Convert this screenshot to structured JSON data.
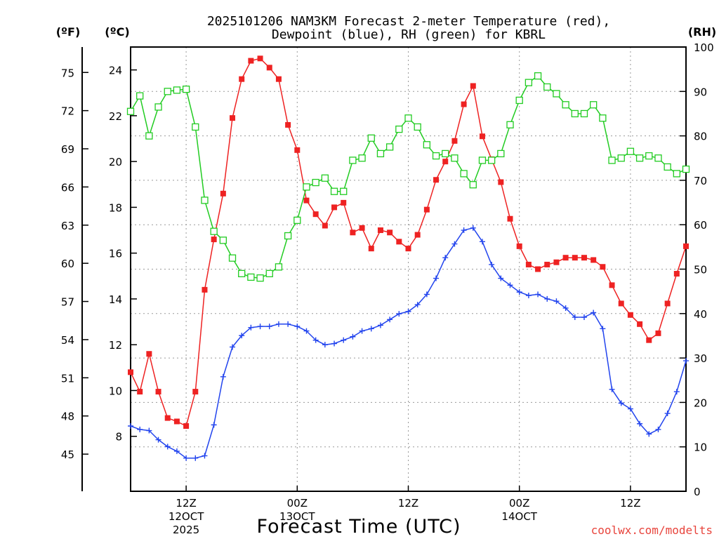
{
  "chart_data": {
    "type": "line",
    "title_line1": "2025101206 NAM3KM Forecast 2-meter Temperature (red),",
    "title_line2": "Dewpoint (blue), RH (green) for KBRL",
    "xlabel": "Forecast Time (UTC)",
    "credit": "coolwx.com/modelts",
    "left_outer_axis": {
      "unit_label": "(ºF)",
      "ticks": [
        45,
        48,
        51,
        54,
        57,
        60,
        63,
        66,
        69,
        72,
        75
      ]
    },
    "left_axis": {
      "unit_label": "(ºC)",
      "ylim": [
        5.6,
        25.0
      ],
      "ticks": [
        8,
        10,
        12,
        14,
        16,
        18,
        20,
        22,
        24
      ]
    },
    "right_axis": {
      "unit_label": "(RH)",
      "ylim": [
        0,
        100
      ],
      "ticks": [
        0,
        10,
        20,
        30,
        40,
        50,
        60,
        70,
        80,
        90,
        100
      ]
    },
    "x_axis": {
      "unit": "forecast hour",
      "xlim": [
        7,
        67
      ],
      "ticks": [
        {
          "hour": 13,
          "label1": "12Z",
          "label2": "12OCT",
          "label3": "2025"
        },
        {
          "hour": 25,
          "label1": "00Z",
          "label2": "13OCT",
          "label3": ""
        },
        {
          "hour": 37,
          "label1": "12Z",
          "label2": "",
          "label3": ""
        },
        {
          "hour": 49,
          "label1": "00Z",
          "label2": "14OCT",
          "label3": ""
        },
        {
          "hour": 61,
          "label1": "12Z",
          "label2": "",
          "label3": ""
        }
      ]
    },
    "series": [
      {
        "name": "Temperature",
        "axis": "C",
        "color": "#ee2222",
        "marker": "filled-square",
        "x": [
          7,
          8,
          9,
          10,
          11,
          12,
          13,
          14,
          15,
          16,
          17,
          18,
          19,
          20,
          21,
          22,
          23,
          24,
          25,
          26,
          27,
          28,
          29,
          30,
          31,
          32,
          33,
          34,
          35,
          36,
          37,
          38,
          39,
          40,
          41,
          42,
          43,
          44,
          45,
          46,
          47,
          48,
          49,
          50,
          51,
          52,
          53,
          54,
          55,
          56,
          57,
          58,
          59,
          60,
          61,
          62,
          63,
          64,
          65,
          66,
          67
        ],
        "values": [
          10.8,
          9.95,
          11.6,
          9.95,
          8.8,
          8.65,
          8.45,
          9.95,
          14.4,
          16.6,
          18.6,
          21.9,
          23.6,
          24.4,
          24.5,
          24.1,
          23.6,
          21.6,
          20.5,
          18.3,
          17.7,
          17.2,
          18.0,
          18.2,
          16.9,
          17.1,
          16.2,
          17.0,
          16.9,
          16.5,
          16.2,
          16.8,
          17.9,
          19.2,
          20.0,
          20.9,
          22.5,
          23.3,
          21.1,
          20.1,
          19.1,
          17.5,
          16.3,
          15.5,
          15.3,
          15.5,
          15.6,
          15.8,
          15.8,
          15.8,
          15.7,
          15.4,
          14.6,
          13.8,
          13.3,
          12.9,
          12.2,
          12.5,
          13.8,
          15.1,
          16.3
        ]
      },
      {
        "name": "Dewpoint",
        "axis": "C",
        "color": "#2244ee",
        "marker": "plus",
        "x": [
          7,
          8,
          9,
          10,
          11,
          12,
          13,
          14,
          15,
          16,
          17,
          18,
          19,
          20,
          21,
          22,
          23,
          24,
          25,
          26,
          27,
          28,
          29,
          30,
          31,
          32,
          33,
          34,
          35,
          36,
          37,
          38,
          39,
          40,
          41,
          42,
          43,
          44,
          45,
          46,
          47,
          48,
          49,
          50,
          51,
          52,
          53,
          54,
          55,
          56,
          57,
          58,
          59,
          60,
          61,
          62,
          63,
          64,
          65,
          66,
          67
        ],
        "values": [
          8.45,
          8.3,
          8.25,
          7.85,
          7.55,
          7.35,
          7.05,
          7.05,
          7.15,
          8.5,
          10.6,
          11.9,
          12.4,
          12.75,
          12.8,
          12.8,
          12.9,
          12.9,
          12.8,
          12.6,
          12.2,
          12.0,
          12.05,
          12.2,
          12.35,
          12.6,
          12.7,
          12.85,
          13.1,
          13.35,
          13.45,
          13.75,
          14.2,
          14.9,
          15.8,
          16.4,
          17.0,
          17.1,
          16.5,
          15.5,
          14.9,
          14.6,
          14.3,
          14.15,
          14.2,
          14.0,
          13.9,
          13.6,
          13.2,
          13.2,
          13.4,
          12.7,
          10.05,
          9.45,
          9.2,
          8.55,
          8.1,
          8.3,
          9.0,
          9.95,
          11.3
        ]
      },
      {
        "name": "RH",
        "axis": "RH",
        "color": "#22cc22",
        "marker": "open-square",
        "x": [
          7,
          8,
          9,
          10,
          11,
          12,
          13,
          14,
          15,
          16,
          17,
          18,
          19,
          20,
          21,
          22,
          23,
          24,
          25,
          26,
          27,
          28,
          29,
          30,
          31,
          32,
          33,
          34,
          35,
          36,
          37,
          38,
          39,
          40,
          41,
          42,
          43,
          44,
          45,
          46,
          47,
          48,
          49,
          50,
          51,
          52,
          53,
          54,
          55,
          56,
          57,
          58,
          59,
          60,
          61,
          62,
          63,
          64,
          65,
          66,
          67
        ],
        "values": [
          85.5,
          89,
          80,
          86.5,
          90,
          90.3,
          90.5,
          82,
          65.5,
          58.5,
          56.5,
          52.5,
          49,
          48.2,
          48,
          49,
          50.5,
          57.5,
          61,
          68.5,
          69.5,
          70.5,
          67.5,
          67.5,
          74.5,
          75,
          79.5,
          76,
          77.5,
          81.5,
          84,
          82,
          78,
          75.5,
          76,
          75,
          71.5,
          69,
          74.5,
          74.5,
          76,
          82.5,
          88,
          92,
          93.5,
          91,
          89.5,
          87,
          85,
          85,
          87,
          84,
          74.5,
          75,
          76.5,
          75,
          75.5,
          75,
          73,
          71.5,
          72.5
        ]
      }
    ]
  }
}
